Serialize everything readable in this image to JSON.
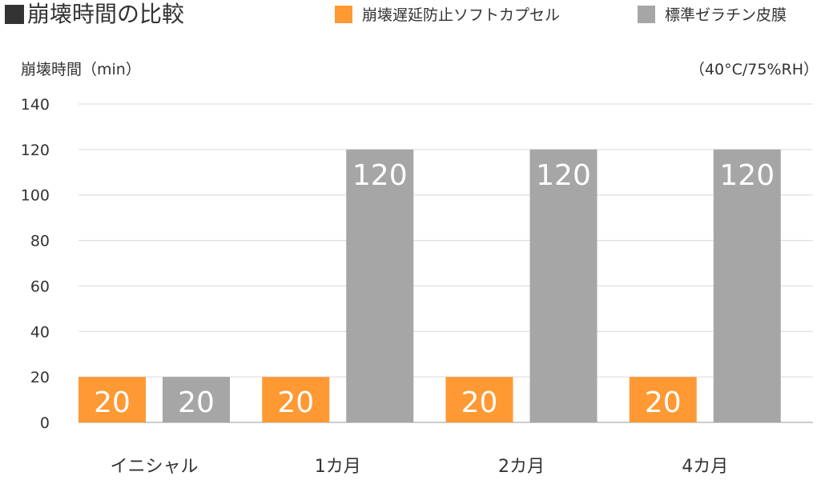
{
  "title": "崩壊時間の比較",
  "legend": [
    {
      "label": "崩壊遅延防止ソフトカプセル",
      "color": "#ff9933"
    },
    {
      "label": "標準ゼラチン皮膜",
      "color": "#a6a6a6"
    }
  ],
  "axis_label": "崩壊時間（min）",
  "condition": "（40°C/75%RH）",
  "chart_data": {
    "type": "bar",
    "title": "崩壊時間の比較",
    "ylabel": "崩壊時間（min）",
    "xlabel": "",
    "categories": [
      "イニシャル",
      "1カ月",
      "2カ月",
      "4カ月"
    ],
    "series": [
      {
        "name": "崩壊遅延防止ソフトカプセル",
        "values": [
          20,
          20,
          20,
          20
        ],
        "color": "#ff9933"
      },
      {
        "name": "標準ゼラチン皮膜",
        "values": [
          20,
          120,
          120,
          120
        ],
        "color": "#a6a6a6"
      }
    ],
    "ylim": [
      0,
      140
    ],
    "yticks": [
      0,
      20,
      40,
      60,
      80,
      100,
      120,
      140
    ],
    "grid": true,
    "legend_position": "top-right",
    "data_labels": true
  }
}
